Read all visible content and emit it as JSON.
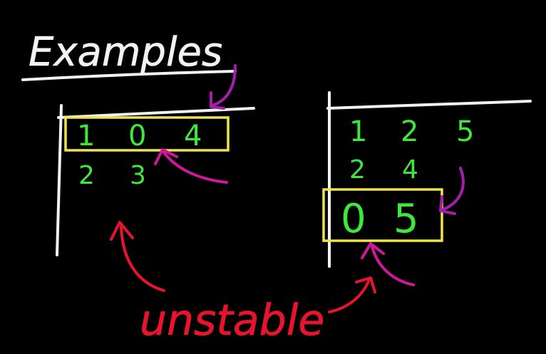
{
  "title": "Examples",
  "left_table": {
    "row1": [
      "1",
      "0",
      "4"
    ],
    "row2": [
      "2",
      "3"
    ]
  },
  "right_table": {
    "row1": [
      "1",
      "2",
      "5"
    ],
    "row2": [
      "2",
      "4"
    ],
    "row3": [
      "0",
      "5"
    ]
  },
  "caption": "unstable",
  "colors": {
    "background": "#000000",
    "chalk": "#f2f2f2",
    "digits": "#3ee83a",
    "highlight_box": "#ece64a",
    "magenta": "#d0169a",
    "purple": "#a51ea8",
    "red": "#e8142e"
  }
}
